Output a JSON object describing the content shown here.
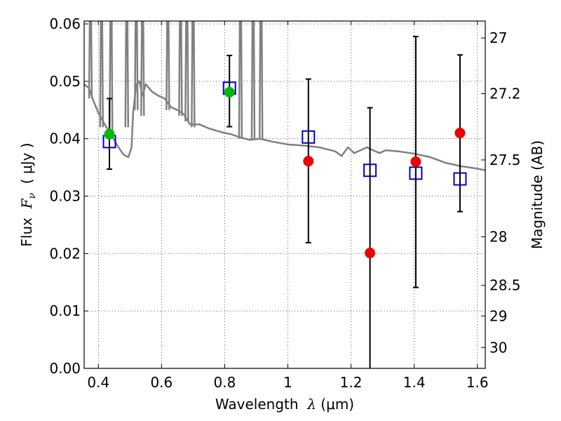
{
  "chart_data": {
    "type": "scatter",
    "xlabel": "Wavelength  λ (μm)",
    "xlabel_parts": {
      "prefix": "Wavelength  ",
      "symbol": "λ",
      "unit": " (μm)"
    },
    "ylabel_parts": {
      "prefix": "Flux  ",
      "symbol": "F",
      "subscript": "ν",
      "unit": "  ( μJy )"
    },
    "y2label": "Magnitude (AB)",
    "xlim": [
      0.355,
      1.625
    ],
    "ylim": [
      0.0,
      0.0605
    ],
    "grid": true,
    "x_ticks": [
      {
        "value": 0.4,
        "label": "0.4"
      },
      {
        "value": 0.6,
        "label": "0.6"
      },
      {
        "value": 0.8,
        "label": "0.8"
      },
      {
        "value": 1.0,
        "label": "1"
      },
      {
        "value": 1.2,
        "label": "1.2"
      },
      {
        "value": 1.4,
        "label": "1.4"
      },
      {
        "value": 1.6,
        "label": "1.6"
      }
    ],
    "y_ticks": [
      {
        "value": 0.0,
        "label": "0.00"
      },
      {
        "value": 0.01,
        "label": "0.01"
      },
      {
        "value": 0.02,
        "label": "0.02"
      },
      {
        "value": 0.03,
        "label": "0.03"
      },
      {
        "value": 0.04,
        "label": "0.04"
      },
      {
        "value": 0.05,
        "label": "0.05"
      },
      {
        "value": 0.06,
        "label": "0.06"
      }
    ],
    "y2_ticks": [
      {
        "value": 27.0,
        "label": "27"
      },
      {
        "value": 27.2,
        "label": "27.2"
      },
      {
        "value": 27.5,
        "label": "27.5"
      },
      {
        "value": 28.0,
        "label": "28"
      },
      {
        "value": 28.5,
        "label": "28.5"
      },
      {
        "value": 29.0,
        "label": "29"
      },
      {
        "value": 30.0,
        "label": "30"
      }
    ],
    "series": [
      {
        "name": "model SED",
        "kind": "line",
        "color": "#808080",
        "x": [
          0.355,
          0.37,
          0.385,
          0.4,
          0.42,
          0.44,
          0.46,
          0.48,
          0.495,
          0.505,
          0.51,
          0.515,
          0.52,
          0.53,
          0.54,
          0.55,
          0.57,
          0.59,
          0.61,
          0.63,
          0.65,
          0.67,
          0.69,
          0.72,
          0.75,
          0.78,
          0.8,
          0.82,
          0.85,
          0.88,
          0.91,
          0.95,
          1.0,
          1.05,
          1.1,
          1.15,
          1.17,
          1.19,
          1.21,
          1.23,
          1.25,
          1.27,
          1.29,
          1.31,
          1.35,
          1.4,
          1.45,
          1.5,
          1.55,
          1.6,
          1.625
        ],
        "y": [
          0.0495,
          0.0488,
          0.0465,
          0.0445,
          0.0425,
          0.0408,
          0.0388,
          0.0372,
          0.0368,
          0.0385,
          0.0445,
          0.047,
          0.0495,
          0.05,
          0.0475,
          0.0495,
          0.0482,
          0.0475,
          0.047,
          0.0455,
          0.045,
          0.0443,
          0.0425,
          0.0425,
          0.0418,
          0.0413,
          0.041,
          0.0408,
          0.0402,
          0.0398,
          0.04,
          0.0395,
          0.039,
          0.0388,
          0.0385,
          0.0378,
          0.037,
          0.0385,
          0.0375,
          0.038,
          0.0385,
          0.038,
          0.0375,
          0.038,
          0.0378,
          0.0374,
          0.0368,
          0.0358,
          0.0352,
          0.0348,
          0.0345
        ]
      },
      {
        "name": "model SED spikes",
        "kind": "spikes",
        "color": "#808080",
        "x": [
          0.375,
          0.41,
          0.44,
          0.49,
          0.52,
          0.54,
          0.62,
          0.66,
          0.68,
          0.7,
          0.85,
          0.89,
          0.915
        ],
        "top": [
          0.062,
          0.062,
          0.062,
          0.062,
          0.062,
          0.062,
          0.062,
          0.062,
          0.062,
          0.062,
          0.062,
          0.062,
          0.062
        ],
        "bottom": [
          0.047,
          0.042,
          0.041,
          0.042,
          0.045,
          0.044,
          0.045,
          0.044,
          0.043,
          0.042,
          0.04,
          0.04,
          0.04
        ]
      },
      {
        "name": "model photometry",
        "kind": "open-square",
        "color": "#0000cc",
        "x": [
          0.435,
          0.815,
          1.065,
          1.26,
          1.405,
          1.545
        ],
        "y": [
          0.0395,
          0.0488,
          0.0403,
          0.0345,
          0.034,
          0.033
        ]
      },
      {
        "name": "detections",
        "kind": "filled-circle",
        "color": "#00bb00",
        "x": [
          0.435,
          0.815
        ],
        "y": [
          0.0408,
          0.0481
        ],
        "yerr_low": [
          0.0347,
          0.0421
        ],
        "yerr_high": [
          0.047,
          0.0545
        ]
      },
      {
        "name": "non-detections",
        "kind": "filled-circle",
        "color": "#ee0000",
        "x": [
          1.065,
          1.26,
          1.405,
          1.545
        ],
        "y": [
          0.0361,
          0.0201,
          0.036,
          0.041
        ],
        "yerr_low": [
          0.0219,
          0.0,
          0.0141,
          0.0273
        ],
        "yerr_high": [
          0.0504,
          0.0454,
          0.0578,
          0.0546
        ]
      }
    ]
  }
}
